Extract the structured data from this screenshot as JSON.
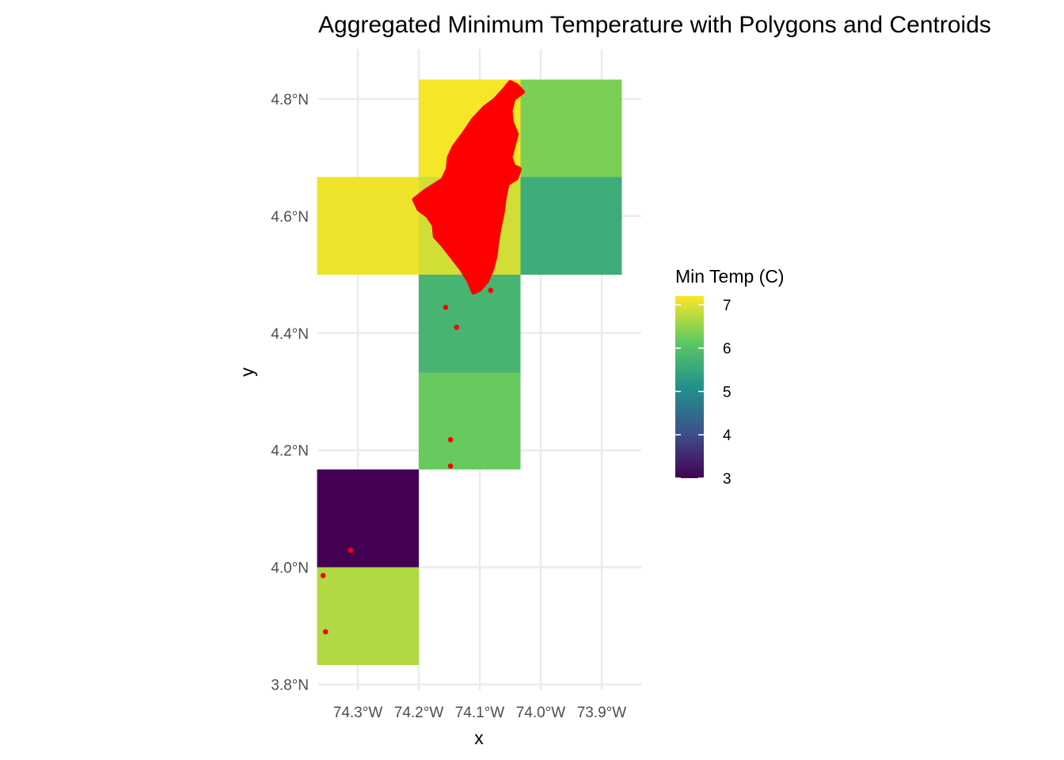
{
  "chart_data": {
    "type": "heatmap",
    "title": "Aggregated Minimum Temperature with Polygons and Centroids",
    "xlabel": "x",
    "ylabel": "y",
    "xlim": [
      -74.365,
      -73.835
    ],
    "ylim": [
      3.79,
      4.885
    ],
    "x_ticks": [
      {
        "value": -74.3,
        "label": "74.3°W"
      },
      {
        "value": -74.2,
        "label": "74.2°W"
      },
      {
        "value": -74.1,
        "label": "74.1°W"
      },
      {
        "value": -74.0,
        "label": "74.0°W"
      },
      {
        "value": -73.9,
        "label": "73.9°W"
      }
    ],
    "y_ticks": [
      {
        "value": 3.8,
        "label": "3.8°N"
      },
      {
        "value": 4.0,
        "label": "4.0°N"
      },
      {
        "value": 4.2,
        "label": "4.2°N"
      },
      {
        "value": 4.4,
        "label": "4.4°N"
      },
      {
        "value": 4.6,
        "label": "4.6°N"
      },
      {
        "value": 4.8,
        "label": "4.8°N"
      }
    ],
    "grid": true,
    "cell_size_deg": 0.1667,
    "cells": [
      {
        "x0": -74.2,
        "x1": -74.033,
        "y0": 4.667,
        "y1": 4.833,
        "value": 7.15
      },
      {
        "x0": -74.033,
        "x1": -73.867,
        "y0": 4.667,
        "y1": 4.833,
        "value": 6.35
      },
      {
        "x0": -74.367,
        "x1": -74.2,
        "y0": 4.5,
        "y1": 4.667,
        "value": 7.1
      },
      {
        "x0": -74.2,
        "x1": -74.033,
        "y0": 4.5,
        "y1": 4.667,
        "value": 6.9
      },
      {
        "x0": -74.033,
        "x1": -73.867,
        "y0": 4.5,
        "y1": 4.667,
        "value": 5.6
      },
      {
        "x0": -74.2,
        "x1": -74.033,
        "y0": 4.333,
        "y1": 4.5,
        "value": 5.75
      },
      {
        "x0": -74.2,
        "x1": -74.033,
        "y0": 4.167,
        "y1": 4.333,
        "value": 6.2
      },
      {
        "x0": -74.367,
        "x1": -74.2,
        "y0": 4.0,
        "y1": 4.167,
        "value": 3.0
      },
      {
        "x0": -74.367,
        "x1": -74.2,
        "y0": 3.833,
        "y1": 4.0,
        "value": 6.7
      }
    ],
    "polygon_color": "#ff0000",
    "polygon": [
      [
        -74.207,
        4.628
      ],
      [
        -74.19,
        4.642
      ],
      [
        -74.175,
        4.652
      ],
      [
        -74.16,
        4.662
      ],
      [
        -74.152,
        4.68
      ],
      [
        -74.15,
        4.7
      ],
      [
        -74.142,
        4.718
      ],
      [
        -74.125,
        4.742
      ],
      [
        -74.11,
        4.765
      ],
      [
        -74.092,
        4.785
      ],
      [
        -74.075,
        4.798
      ],
      [
        -74.06,
        4.815
      ],
      [
        -74.05,
        4.828
      ],
      [
        -74.04,
        4.823
      ],
      [
        -74.03,
        4.812
      ],
      [
        -74.045,
        4.8
      ],
      [
        -74.05,
        4.78
      ],
      [
        -74.048,
        4.76
      ],
      [
        -74.04,
        4.74
      ],
      [
        -74.045,
        4.72
      ],
      [
        -74.05,
        4.7
      ],
      [
        -74.045,
        4.685
      ],
      [
        -74.035,
        4.68
      ],
      [
        -74.04,
        4.665
      ],
      [
        -74.055,
        4.655
      ],
      [
        -74.06,
        4.63
      ],
      [
        -74.063,
        4.605
      ],
      [
        -74.068,
        4.58
      ],
      [
        -74.072,
        4.555
      ],
      [
        -74.075,
        4.53
      ],
      [
        -74.08,
        4.51
      ],
      [
        -74.088,
        4.49
      ],
      [
        -74.1,
        4.475
      ],
      [
        -74.11,
        4.47
      ],
      [
        -74.118,
        4.49
      ],
      [
        -74.13,
        4.51
      ],
      [
        -74.145,
        4.53
      ],
      [
        -74.16,
        4.55
      ],
      [
        -74.173,
        4.565
      ],
      [
        -74.175,
        4.585
      ],
      [
        -74.185,
        4.6
      ],
      [
        -74.2,
        4.612
      ]
    ],
    "point_color": "#ff0000",
    "centroids": [
      [
        -74.082,
        4.473
      ],
      [
        -74.156,
        4.444
      ],
      [
        -74.138,
        4.41
      ],
      [
        -74.148,
        4.218
      ],
      [
        -74.148,
        4.173
      ],
      [
        -74.312,
        4.029
      ],
      [
        -74.357,
        3.986
      ],
      [
        -74.353,
        3.89
      ]
    ],
    "legend": {
      "title": "Min Temp (C)",
      "placement": "right",
      "min": 3,
      "max": 7.2,
      "ticks": [
        {
          "value": 3,
          "label": "3"
        },
        {
          "value": 4,
          "label": "4"
        },
        {
          "value": 5,
          "label": "5"
        },
        {
          "value": 6,
          "label": "6"
        },
        {
          "value": 7,
          "label": "7"
        }
      ],
      "colormap": [
        "#440154",
        "#3b528b",
        "#21918c",
        "#5ec962",
        "#fde725"
      ]
    }
  }
}
